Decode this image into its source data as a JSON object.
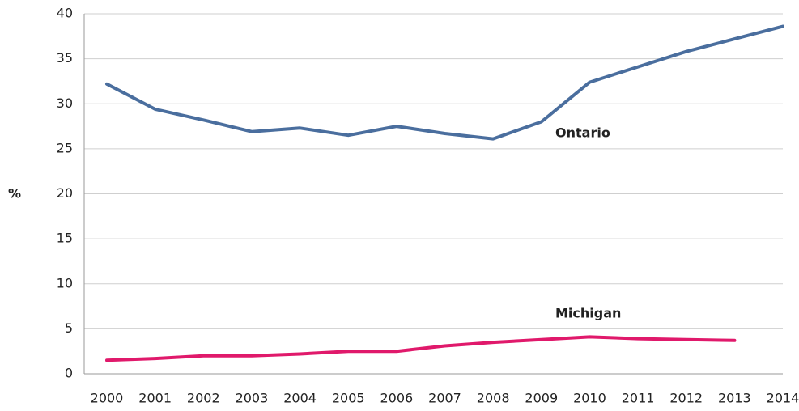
{
  "chart_data": {
    "type": "line",
    "y_label": "%",
    "categories": [
      "2000",
      "2001",
      "2002",
      "2003",
      "2004",
      "2005",
      "2006",
      "2007",
      "2008",
      "2009",
      "2010",
      "2011",
      "2012",
      "2013",
      "2014"
    ],
    "series": [
      {
        "name": "Ontario",
        "color": "#4a6e9e",
        "values": [
          32.2,
          29.4,
          28.2,
          26.9,
          27.3,
          26.5,
          27.5,
          26.7,
          26.1,
          28.0,
          32.4,
          34.1,
          35.8,
          37.2,
          38.6
        ]
      },
      {
        "name": "Michigan",
        "color": "#e0196b",
        "values": [
          1.5,
          1.7,
          2.0,
          2.0,
          2.2,
          2.5,
          2.5,
          3.1,
          3.5,
          3.8,
          4.1,
          3.9,
          3.8,
          3.7,
          null
        ]
      }
    ],
    "ylim": [
      0,
      40
    ],
    "yticks": [
      0,
      5,
      10,
      15,
      20,
      25,
      30,
      35,
      40
    ],
    "grid": true
  }
}
